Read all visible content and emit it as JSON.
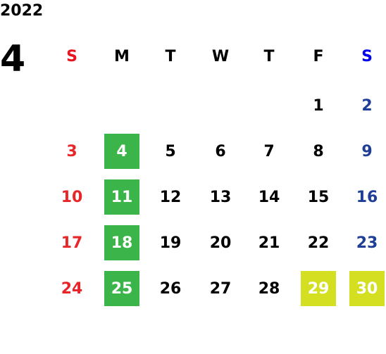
{
  "year": "2022",
  "month": "4",
  "weekdays": [
    "S",
    "M",
    "T",
    "W",
    "T",
    "F",
    "S"
  ],
  "weekday_colors": [
    "#e8141e",
    "#000000",
    "#000000",
    "#000000",
    "#000000",
    "#000000",
    "#0000ee"
  ],
  "day_colors": [
    "#e8262a",
    "#000000",
    "#000000",
    "#000000",
    "#000000",
    "#000000",
    "#1f3f96"
  ],
  "weeks": [
    [
      null,
      null,
      null,
      null,
      null,
      "1",
      "2"
    ],
    [
      "3",
      "4",
      "5",
      "6",
      "7",
      "8",
      "9"
    ],
    [
      "10",
      "11",
      "12",
      "13",
      "14",
      "15",
      "16"
    ],
    [
      "17",
      "18",
      "19",
      "20",
      "21",
      "22",
      "23"
    ],
    [
      "24",
      "25",
      "26",
      "27",
      "28",
      "29",
      "30"
    ]
  ],
  "highlights": [
    {
      "color": "#3bb44a",
      "days": [
        "4",
        "11",
        "18",
        "25"
      ]
    },
    {
      "color": "#d5df22",
      "days": [
        "29",
        "30"
      ]
    }
  ]
}
